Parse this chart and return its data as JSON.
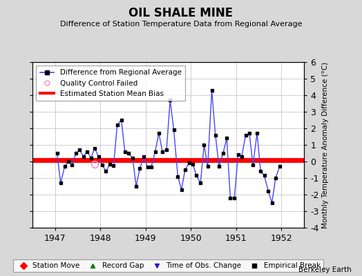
{
  "title": "OIL SHALE MINE",
  "subtitle": "Difference of Station Temperature Data from Regional Average",
  "ylabel": "Monthly Temperature Anomaly Difference (°C)",
  "xlim": [
    1946.5,
    1952.5
  ],
  "ylim": [
    -4,
    6
  ],
  "yticks": [
    -4,
    -3,
    -2,
    -1,
    0,
    1,
    2,
    3,
    4,
    5,
    6
  ],
  "xticks": [
    1947,
    1948,
    1949,
    1950,
    1951,
    1952
  ],
  "bias_value": 0.1,
  "line_color": "#4444ff",
  "bias_color": "#ff0000",
  "background_color": "#d8d8d8",
  "plot_bg_color": "#ffffff",
  "watermark": "Berkeley Earth",
  "x_values": [
    1947.04,
    1947.12,
    1947.21,
    1947.29,
    1947.37,
    1947.46,
    1947.54,
    1947.62,
    1947.71,
    1947.79,
    1947.87,
    1947.96,
    1948.04,
    1948.12,
    1948.21,
    1948.29,
    1948.37,
    1948.46,
    1948.54,
    1948.62,
    1948.71,
    1948.79,
    1948.87,
    1948.96,
    1949.04,
    1949.12,
    1949.21,
    1949.29,
    1949.37,
    1949.46,
    1949.54,
    1949.62,
    1949.71,
    1949.79,
    1949.87,
    1949.96,
    1950.04,
    1950.12,
    1950.21,
    1950.29,
    1950.37,
    1950.46,
    1950.54,
    1950.62,
    1950.71,
    1950.79,
    1950.87,
    1950.96,
    1951.04,
    1951.12,
    1951.21,
    1951.29,
    1951.37,
    1951.46,
    1951.54,
    1951.62,
    1951.71,
    1951.79,
    1951.87,
    1951.96
  ],
  "y_values": [
    0.5,
    -1.3,
    -0.3,
    0.0,
    -0.2,
    0.5,
    0.7,
    0.3,
    0.6,
    0.2,
    0.8,
    0.3,
    -0.2,
    -0.6,
    -0.15,
    -0.25,
    2.2,
    2.5,
    0.6,
    0.5,
    0.2,
    -1.5,
    -0.4,
    0.3,
    -0.35,
    -0.35,
    0.6,
    1.7,
    0.6,
    0.7,
    3.7,
    1.9,
    -0.9,
    -1.7,
    -0.5,
    -0.1,
    -0.15,
    -0.85,
    -1.3,
    1.0,
    -0.3,
    4.3,
    1.6,
    -0.3,
    0.5,
    1.4,
    -2.2,
    -2.2,
    0.4,
    0.3,
    1.6,
    1.7,
    -0.2,
    1.7,
    -0.6,
    -0.85,
    -1.8,
    -2.5,
    -1.0,
    -0.3
  ],
  "qc_fail_x": [
    1947.87
  ],
  "qc_fail_y": [
    -0.15
  ]
}
